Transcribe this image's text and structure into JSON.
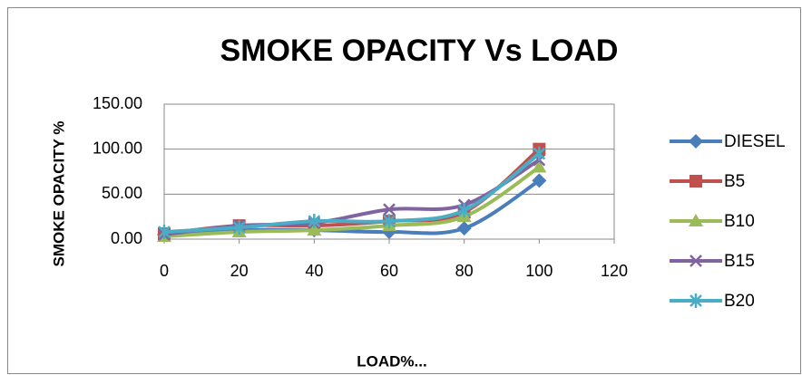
{
  "chart_data": {
    "type": "line",
    "title": "SMOKE OPACITY Vs LOAD",
    "x_label": "LOAD%...",
    "y_label": "SMOKE OPACITY %",
    "x": [
      0,
      20,
      40,
      60,
      80,
      100
    ],
    "series": [
      {
        "name": "DIESEL",
        "color": "#4a7ebb",
        "marker": "diamond",
        "values": [
          5,
          10,
          10,
          8,
          12,
          65
        ]
      },
      {
        "name": "B5",
        "color": "#c0504d",
        "marker": "square",
        "values": [
          6,
          15,
          15,
          20,
          30,
          100
        ]
      },
      {
        "name": "B10",
        "color": "#9bbb59",
        "marker": "triangle",
        "values": [
          3,
          8,
          10,
          15,
          25,
          80
        ]
      },
      {
        "name": "B15",
        "color": "#8064a2",
        "marker": "x",
        "values": [
          5,
          15,
          18,
          33,
          38,
          88
        ]
      },
      {
        "name": "B20",
        "color": "#4bacc6",
        "marker": "star",
        "values": [
          8,
          13,
          20,
          20,
          32,
          95
        ]
      }
    ],
    "xlim": [
      0,
      120
    ],
    "xticks": [
      0,
      20,
      40,
      60,
      80,
      100,
      120
    ],
    "ylim": [
      0,
      150
    ],
    "yticks": [
      {
        "value": 0,
        "label": "0.00"
      },
      {
        "value": 50,
        "label": "50.00"
      },
      {
        "value": 100,
        "label": "100.00"
      },
      {
        "value": 150,
        "label": "150.00"
      }
    ],
    "grid": true,
    "legend": "right"
  }
}
